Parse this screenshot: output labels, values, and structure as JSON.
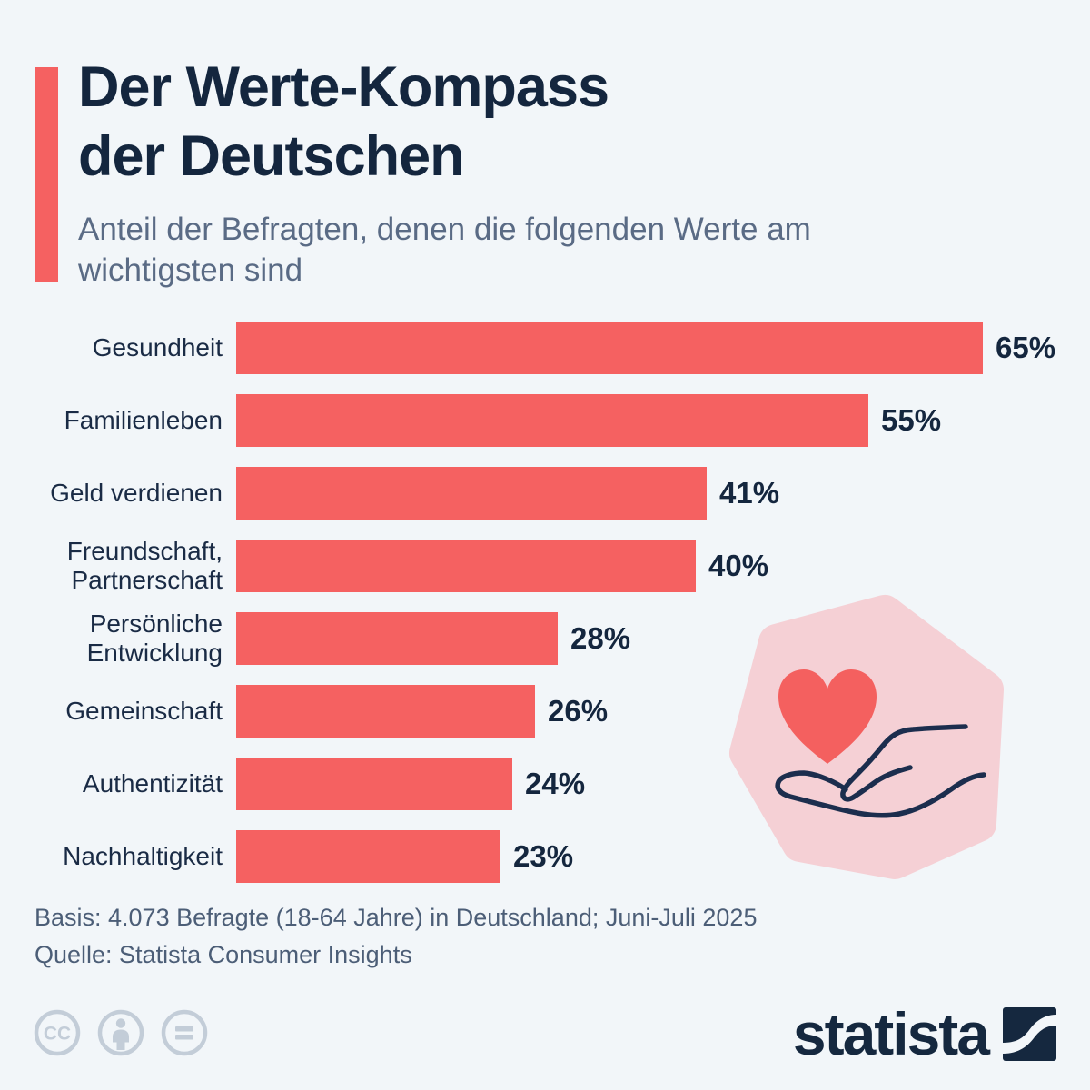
{
  "page": {
    "background_color": "#F2F6F9",
    "accent_color": "#F56161"
  },
  "header": {
    "title_line1": "Der Werte-Kompass",
    "title_line2": "der Deutschen",
    "subtitle_line1": "Anteil der Befragten, denen die folgenden Werte am",
    "subtitle_line2": "wichtigsten sind"
  },
  "chart_data": {
    "type": "bar",
    "orientation": "horizontal",
    "title": "Der Werte-Kompass der Deutschen",
    "subtitle": "Anteil der Befragten, denen die folgenden Werte am wichtigsten sind",
    "categories": [
      "Gesundheit",
      "Familienleben",
      "Geld verdienen",
      "Freundschaft,\nPartnerschaft",
      "Persönliche\nEntwicklung",
      "Gemeinschaft",
      "Authentizität",
      "Nachhaltigkeit"
    ],
    "values": [
      65,
      55,
      41,
      40,
      28,
      26,
      24,
      23
    ],
    "value_labels": [
      "65%",
      "55%",
      "41%",
      "40%",
      "28%",
      "26%",
      "24%",
      "23%"
    ],
    "unit": "%",
    "xlim": [
      0,
      65
    ],
    "grid": false,
    "legend": false,
    "bar_color": "#F56161",
    "label_color": "#1A2B45",
    "value_color": "#14263E"
  },
  "illustration": {
    "name": "hand-holding-heart",
    "blob_color": "#F5D0D5",
    "heart_color": "#F4605F",
    "line_color": "#1C2E4E"
  },
  "footer": {
    "basis": "Basis: 4.073 Befragte (18-64 Jahre) in Deutschland; Juni-Juli 2025",
    "source": "Quelle: Statista Consumer Insights"
  },
  "branding": {
    "logo_text": "statista",
    "logo_color": "#15283F",
    "license_icons": [
      "cc",
      "by",
      "nd"
    ],
    "license_icon_color": "#C3CDD8"
  }
}
